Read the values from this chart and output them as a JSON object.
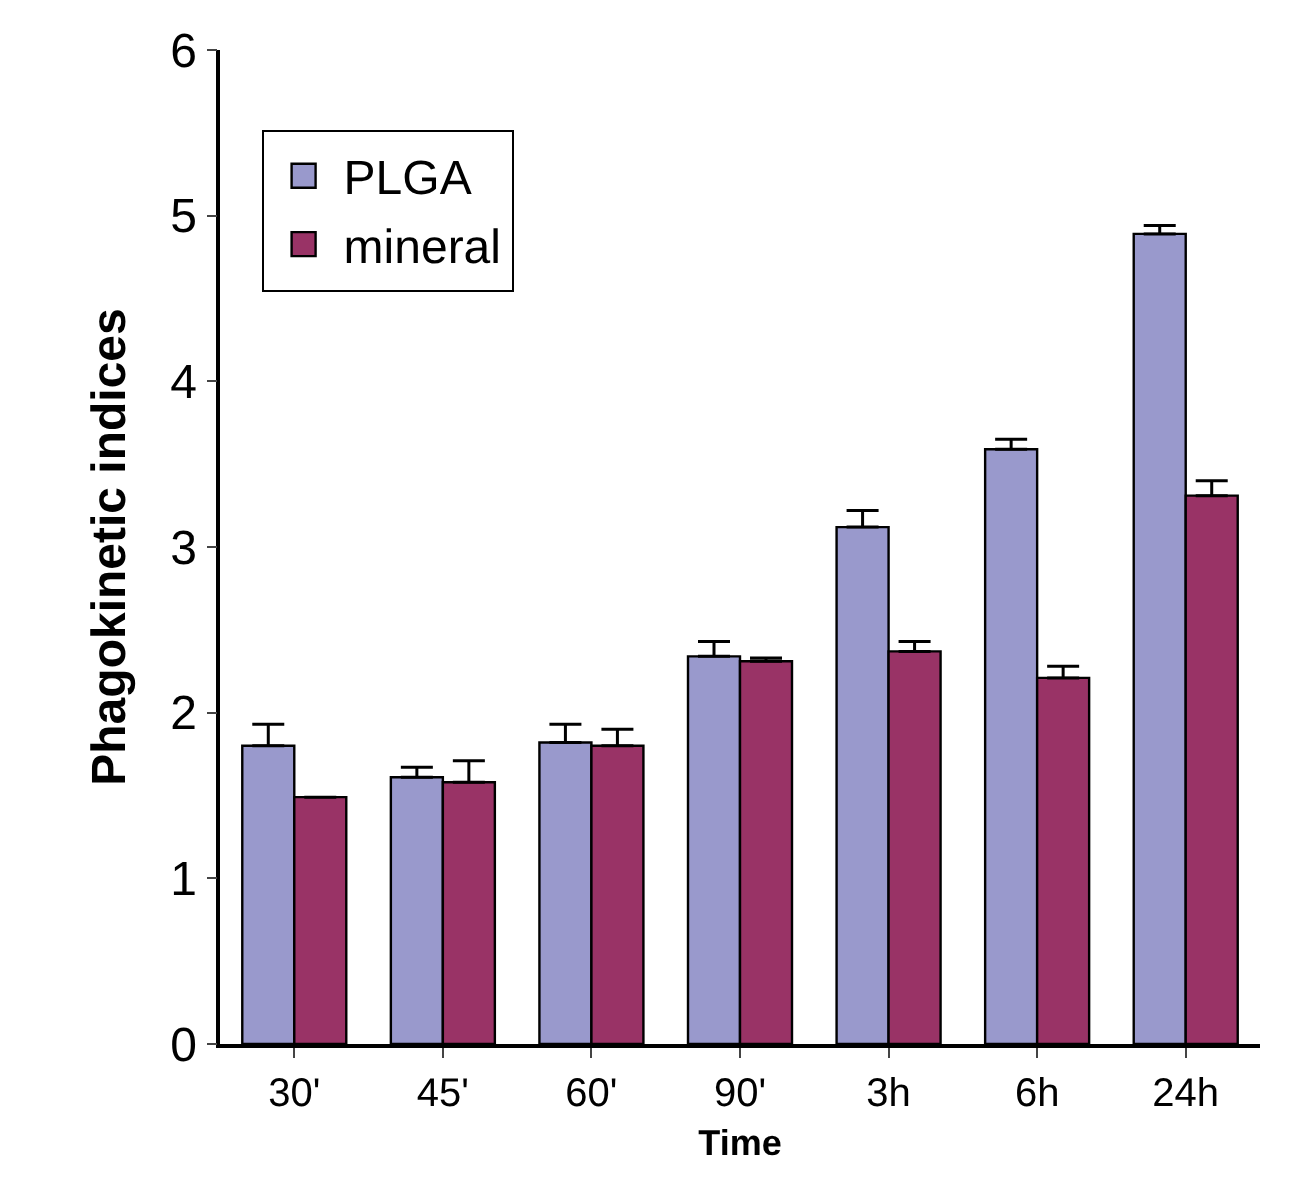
{
  "chart_data": {
    "type": "bar",
    "xlabel": "Time",
    "ylabel": "Phagokinetic indices",
    "categories": [
      "30'",
      "45'",
      "60'",
      "90'",
      "3h",
      "6h",
      "24h"
    ],
    "series": [
      {
        "name": "PLGA",
        "color": "#9999cc",
        "values": [
          1.8,
          1.61,
          1.82,
          2.34,
          3.12,
          3.59,
          4.89
        ],
        "errors": [
          [
            1.8,
            1.93
          ],
          [
            1.61,
            1.67
          ],
          [
            1.82,
            1.93
          ],
          [
            2.34,
            2.43
          ],
          [
            3.12,
            3.22
          ],
          [
            3.59,
            3.65
          ],
          [
            4.89,
            4.94
          ]
        ]
      },
      {
        "name": "mineral",
        "color": "#993366",
        "values": [
          1.49,
          1.58,
          1.8,
          2.31,
          2.37,
          2.21,
          3.31
        ],
        "errors": [
          null,
          [
            1.58,
            1.71
          ],
          [
            1.8,
            1.9
          ],
          [
            2.31,
            2.33
          ],
          [
            2.37,
            2.43
          ],
          [
            2.21,
            2.28
          ],
          [
            3.31,
            3.4
          ]
        ]
      }
    ],
    "ylim": [
      0,
      6
    ],
    "yticks": [
      0,
      1,
      2,
      3,
      4,
      5,
      6
    ],
    "legend": "top left"
  }
}
